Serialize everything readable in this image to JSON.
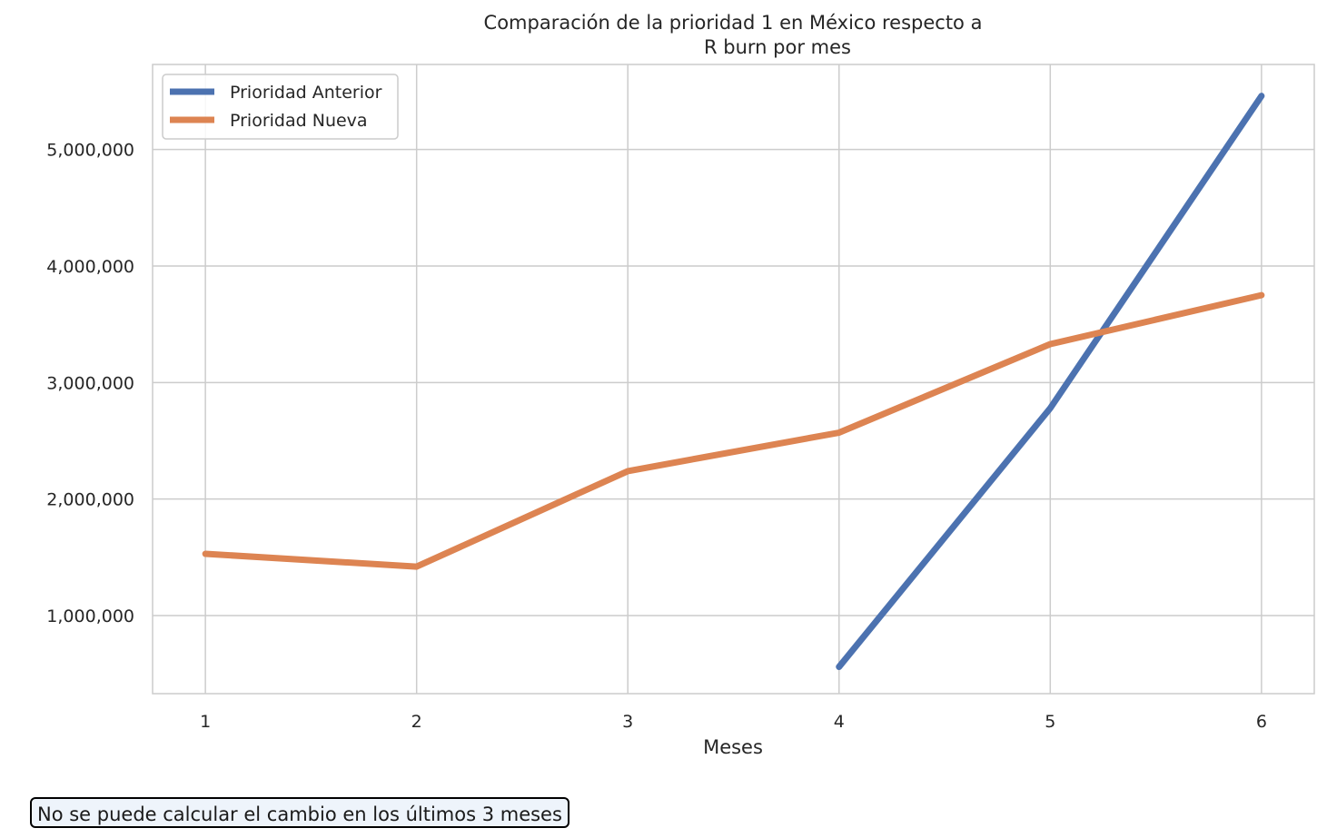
{
  "chart_data": {
    "type": "line",
    "title_line1": "Comparación de la prioridad 1 en México respecto a",
    "title_line2": "R burn por mes",
    "xlabel": "Meses",
    "ylabel": "",
    "x": [
      1,
      2,
      3,
      4,
      5,
      6
    ],
    "xlim": [
      0.75,
      6.25
    ],
    "ylim": [
      330000,
      5730000
    ],
    "y_ticks": [
      1000000,
      2000000,
      3000000,
      4000000,
      5000000
    ],
    "grid": true,
    "legend_position": "top-left",
    "series": [
      {
        "name": "Prioridad Anterior",
        "color": "#4c72b0",
        "values": [
          null,
          null,
          null,
          560000,
          2780000,
          5460000
        ]
      },
      {
        "name": "Prioridad Nueva",
        "color": "#dd8452",
        "values": [
          1530000,
          1420000,
          2240000,
          2570000,
          3330000,
          3750000
        ]
      }
    ]
  },
  "note": "No se puede calcular el cambio en los últimos 3 meses"
}
